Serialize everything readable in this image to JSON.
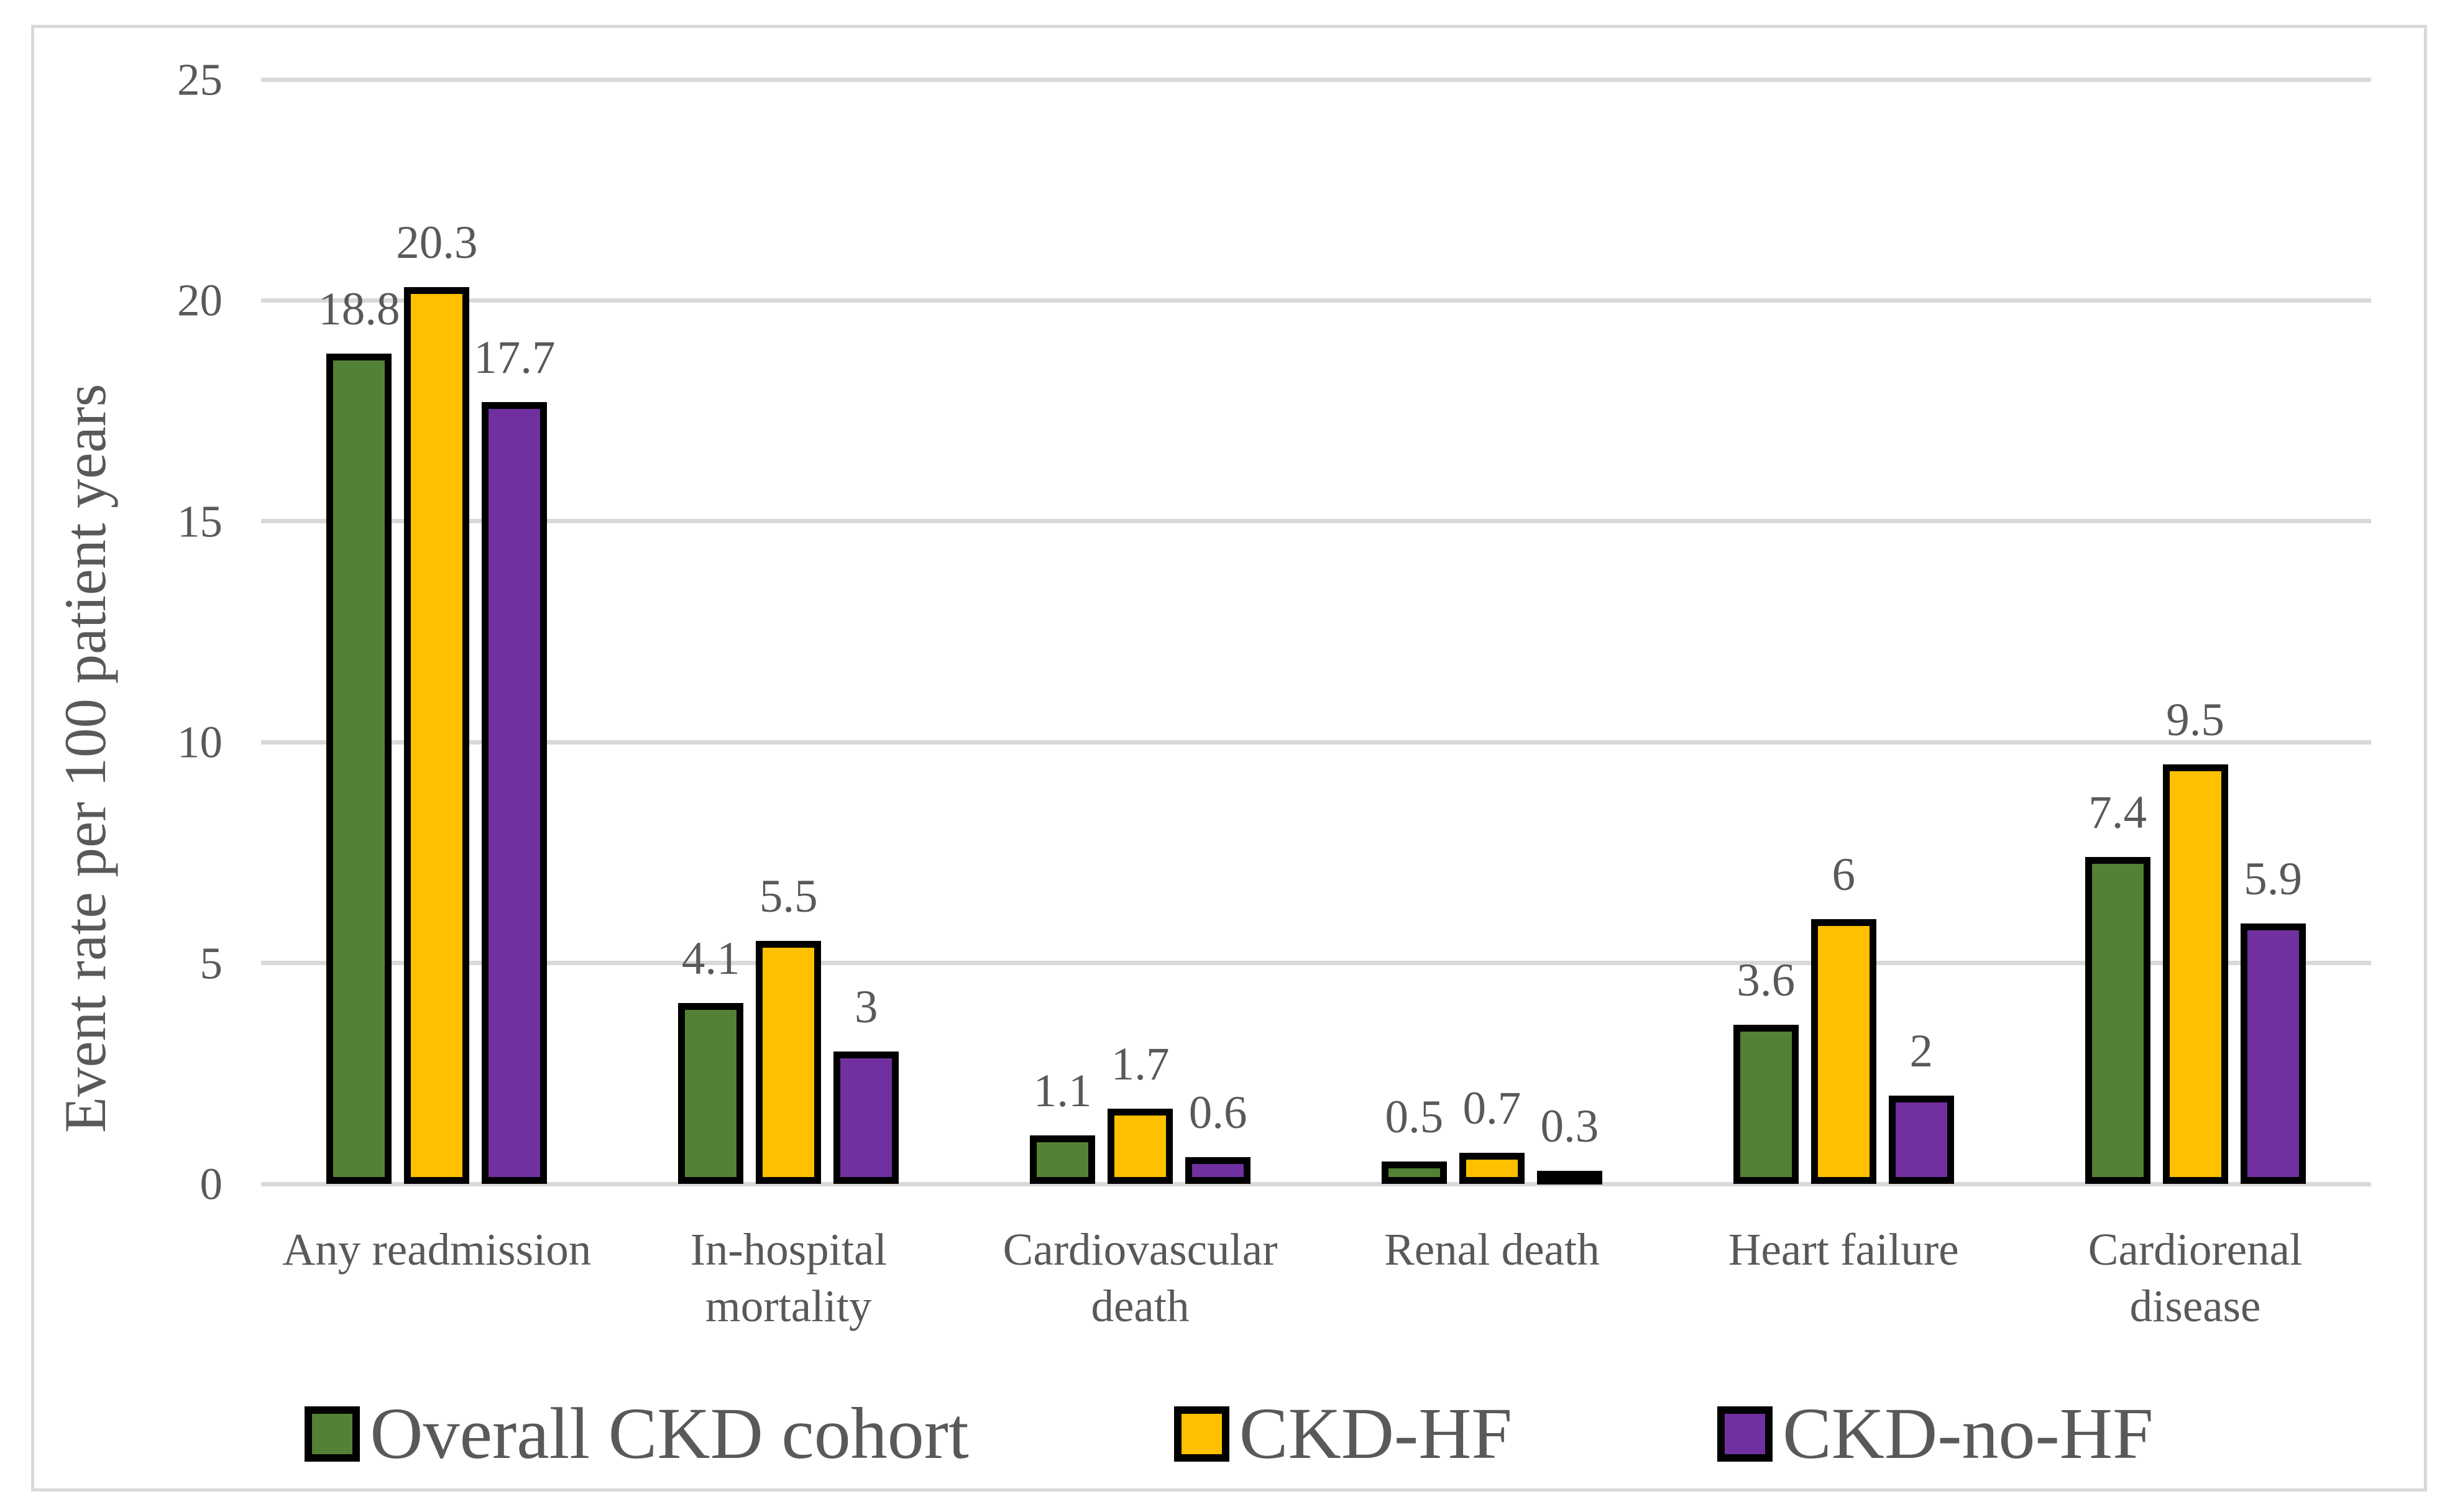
{
  "chart_data": {
    "type": "bar",
    "title": "",
    "ylabel": "Event rate per 100 patient years",
    "xlabel": "",
    "ylim": [
      0,
      25
    ],
    "y_ticks": [
      0,
      5,
      10,
      15,
      20,
      25
    ],
    "grid": true,
    "legend_position": "bottom",
    "categories": [
      "Any readmission",
      "In-hospital\nmortality",
      "Cardiovascular\ndeath",
      "Renal death",
      "Heart failure",
      "Cardiorenal\ndisease"
    ],
    "series": [
      {
        "name": "Overall CKD cohort",
        "color": "#538135",
        "values": [
          18.8,
          4.1,
          1.1,
          0.5,
          3.6,
          7.4
        ],
        "labels": [
          "18.8",
          "4.1",
          "1.1",
          "0.5",
          "3.6",
          "7.4"
        ]
      },
      {
        "name": "CKD-HF",
        "color": "#FFC000",
        "values": [
          20.3,
          5.5,
          1.7,
          0.7,
          6,
          9.5
        ],
        "labels": [
          "20.3",
          "5.5",
          "1.7",
          "0.7",
          "6",
          "9.5"
        ]
      },
      {
        "name": "CKD-no-HF",
        "color": "#7030A0",
        "values": [
          17.7,
          3,
          0.6,
          0.3,
          2,
          5.9
        ],
        "labels": [
          "17.7",
          "3",
          "0.6",
          "0.3",
          "2",
          "5.9"
        ]
      }
    ],
    "colors": {
      "text": "#595959",
      "gridline": "#D9D9D9",
      "bar_border": "#000000",
      "frame_border": "#D9D9D9",
      "background": "#FFFFFF"
    }
  }
}
